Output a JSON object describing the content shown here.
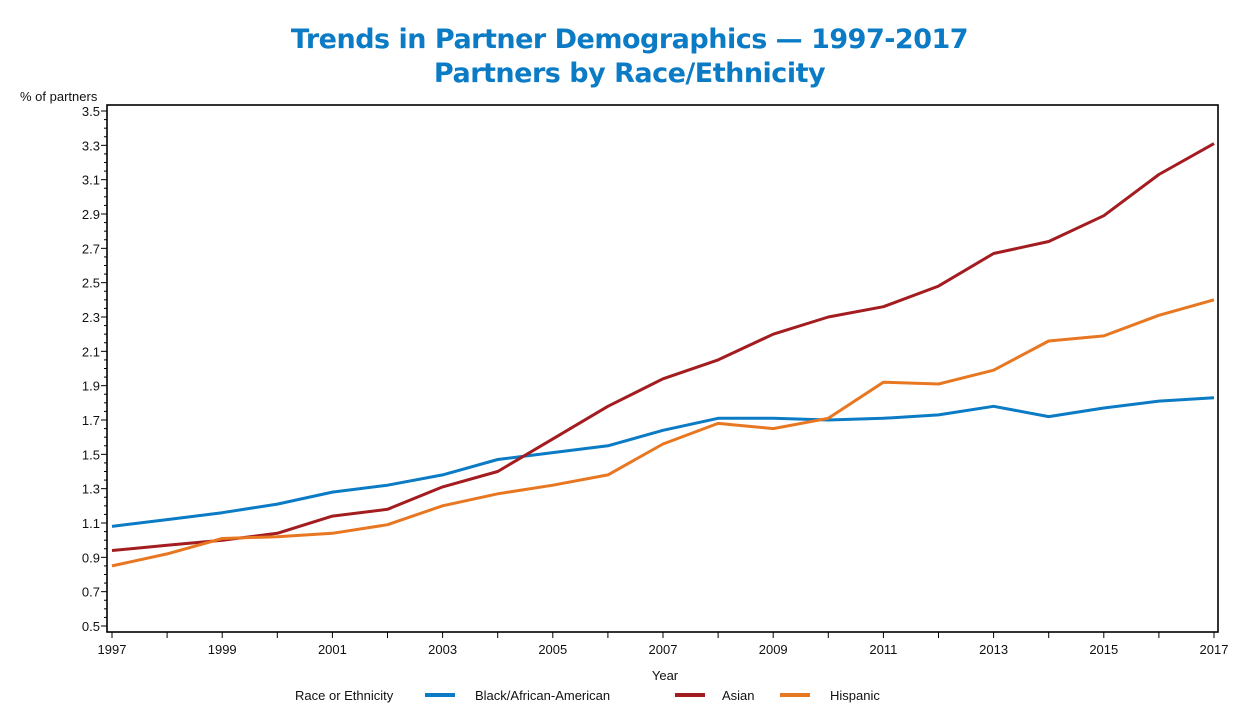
{
  "chart_data": {
    "type": "line",
    "title": "Trends in Partner Demographics — 1997-2017",
    "subtitle": "Partners by Race/Ethnicity",
    "xlabel": "Year",
    "ylabel": "% of partners",
    "x": [
      1997,
      1998,
      1999,
      2000,
      2001,
      2002,
      2003,
      2004,
      2005,
      2006,
      2007,
      2008,
      2009,
      2010,
      2011,
      2012,
      2013,
      2014,
      2015,
      2016,
      2017
    ],
    "xticks": [
      "1997",
      "1999",
      "2001",
      "2003",
      "2005",
      "2007",
      "2009",
      "2011",
      "2013",
      "2015",
      "2017"
    ],
    "yticks": [
      "0.5",
      "0.7",
      "0.9",
      "1.1",
      "1.3",
      "1.5",
      "1.7",
      "1.9",
      "2.1",
      "2.3",
      "2.5",
      "2.7",
      "2.9",
      "3.1",
      "3.3",
      "3.5"
    ],
    "xlim": [
      1997,
      2017
    ],
    "ylim": [
      0.5,
      3.5
    ],
    "grid": false,
    "legend_title": "Race or Ethnicity",
    "legend_placement": "bottom",
    "series": [
      {
        "name": "Black/African-American",
        "color": "#0a7bc4",
        "values": [
          1.08,
          1.12,
          1.16,
          1.21,
          1.28,
          1.32,
          1.38,
          1.47,
          1.51,
          1.55,
          1.64,
          1.71,
          1.71,
          1.7,
          1.71,
          1.73,
          1.78,
          1.72,
          1.77,
          1.81,
          1.83
        ]
      },
      {
        "name": "Asian",
        "color": "#a31c20",
        "values": [
          0.94,
          0.97,
          1.0,
          1.04,
          1.14,
          1.18,
          1.31,
          1.4,
          1.59,
          1.78,
          1.94,
          2.05,
          2.2,
          2.3,
          2.36,
          2.48,
          2.67,
          2.74,
          2.89,
          3.13,
          3.31
        ]
      },
      {
        "name": "Hispanic",
        "color": "#e87722",
        "values": [
          0.85,
          0.92,
          1.01,
          1.02,
          1.04,
          1.09,
          1.2,
          1.27,
          1.32,
          1.38,
          1.56,
          1.68,
          1.65,
          1.71,
          1.92,
          1.91,
          1.99,
          2.16,
          2.19,
          2.31,
          2.4
        ]
      }
    ]
  }
}
